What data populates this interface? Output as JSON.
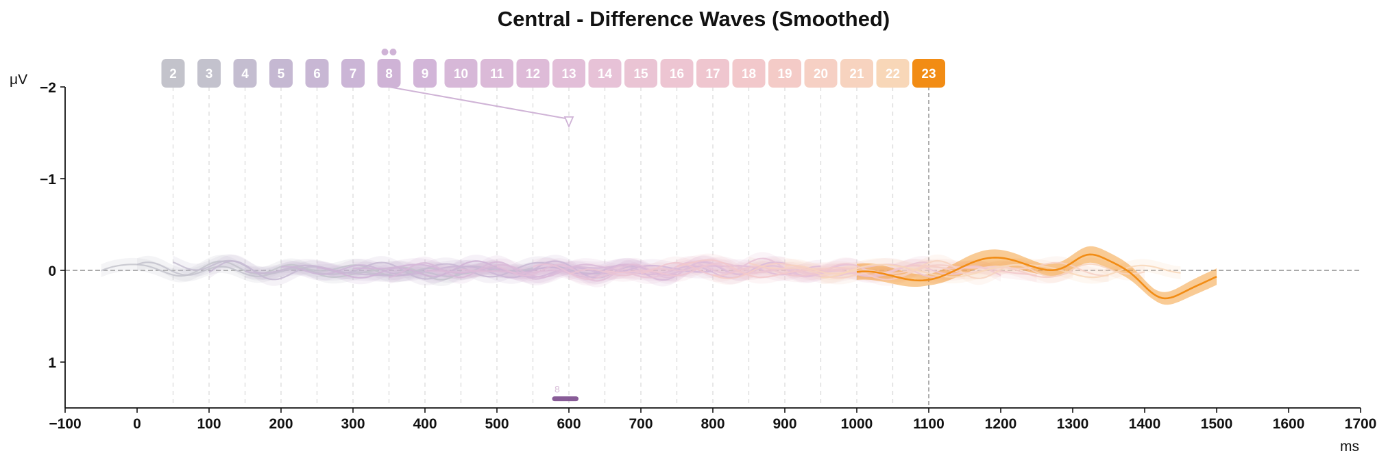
{
  "chart_data": {
    "type": "line",
    "title": "Central - Difference Waves (Smoothed)",
    "xlabel": "ms",
    "ylabel": "μV",
    "y_inverted": true,
    "xlim": [
      -100,
      1700
    ],
    "ylim": [
      -2,
      1.5
    ],
    "xticks": [
      -100,
      0,
      100,
      200,
      300,
      400,
      500,
      600,
      700,
      800,
      900,
      1000,
      1100,
      1200,
      1300,
      1400,
      1500,
      1600,
      1700
    ],
    "xtick_labels": [
      "−100",
      "0",
      "100",
      "200",
      "300",
      "400",
      "500",
      "600",
      "700",
      "800",
      "900",
      "1000",
      "1100",
      "1200",
      "1300",
      "1400",
      "1500",
      "1600",
      "1700"
    ],
    "yticks": [
      -2,
      -1,
      0,
      1
    ],
    "ytick_labels": [
      "−2",
      "−1",
      "0",
      "1"
    ],
    "zero_line": 0,
    "highlighted_series": "23",
    "highlight_marker_x": 1100,
    "series": [
      {
        "name": "2",
        "color": "#c3c3cb",
        "range": [
          -50,
          450
        ],
        "marker_x": 50
      },
      {
        "name": "3",
        "color": "#c3c2cd",
        "range": [
          0,
          500
        ],
        "marker_x": 100
      },
      {
        "name": "4",
        "color": "#c4bdd0",
        "range": [
          50,
          550
        ],
        "marker_x": 150
      },
      {
        "name": "5",
        "color": "#c5b8d2",
        "range": [
          100,
          600
        ],
        "marker_x": 200
      },
      {
        "name": "6",
        "color": "#c8b7d4",
        "range": [
          150,
          650
        ],
        "marker_x": 250
      },
      {
        "name": "7",
        "color": "#cbb5d6",
        "range": [
          200,
          700
        ],
        "marker_x": 300
      },
      {
        "name": "8",
        "color": "#cfb3d6",
        "range": [
          250,
          750
        ],
        "marker_x": 350,
        "flag_dots": 2,
        "peak_arrow": {
          "x": 600,
          "y": -1.65
        }
      },
      {
        "name": "9",
        "color": "#d2b5d8",
        "range": [
          300,
          800
        ],
        "marker_x": 400
      },
      {
        "name": "10",
        "color": "#d7b8d8",
        "range": [
          350,
          850
        ],
        "marker_x": 450
      },
      {
        "name": "11",
        "color": "#dbbad8",
        "range": [
          400,
          900
        ],
        "marker_x": 500
      },
      {
        "name": "12",
        "color": "#debbd8",
        "range": [
          450,
          950
        ],
        "marker_x": 550
      },
      {
        "name": "13",
        "color": "#e2bed8",
        "range": [
          500,
          1000
        ],
        "marker_x": 600
      },
      {
        "name": "14",
        "color": "#e7c2d7",
        "range": [
          550,
          1050
        ],
        "marker_x": 650
      },
      {
        "name": "15",
        "color": "#eac4d4",
        "range": [
          600,
          1100
        ],
        "marker_x": 700
      },
      {
        "name": "16",
        "color": "#edc5d2",
        "range": [
          650,
          1150
        ],
        "marker_x": 750
      },
      {
        "name": "17",
        "color": "#efc6cf",
        "range": [
          700,
          1200
        ],
        "marker_x": 800
      },
      {
        "name": "18",
        "color": "#f2c8cb",
        "range": [
          750,
          1250
        ],
        "marker_x": 850
      },
      {
        "name": "19",
        "color": "#f4cbc7",
        "range": [
          800,
          1300
        ],
        "marker_x": 900
      },
      {
        "name": "20",
        "color": "#f6d0c4",
        "range": [
          850,
          1350
        ],
        "marker_x": 950
      },
      {
        "name": "21",
        "color": "#f7d3bf",
        "range": [
          900,
          1400
        ],
        "marker_x": 1000
      },
      {
        "name": "22",
        "color": "#f8d7b8",
        "range": [
          950,
          1450
        ],
        "marker_x": 1050
      },
      {
        "name": "23",
        "color": "#f28c14",
        "range": [
          1000,
          1500
        ],
        "marker_x": 1100
      }
    ],
    "significance_bars": [
      {
        "label": "8",
        "x_start": 580,
        "x_end": 610,
        "y": 1.4,
        "color": "#7b4a8c"
      }
    ]
  }
}
